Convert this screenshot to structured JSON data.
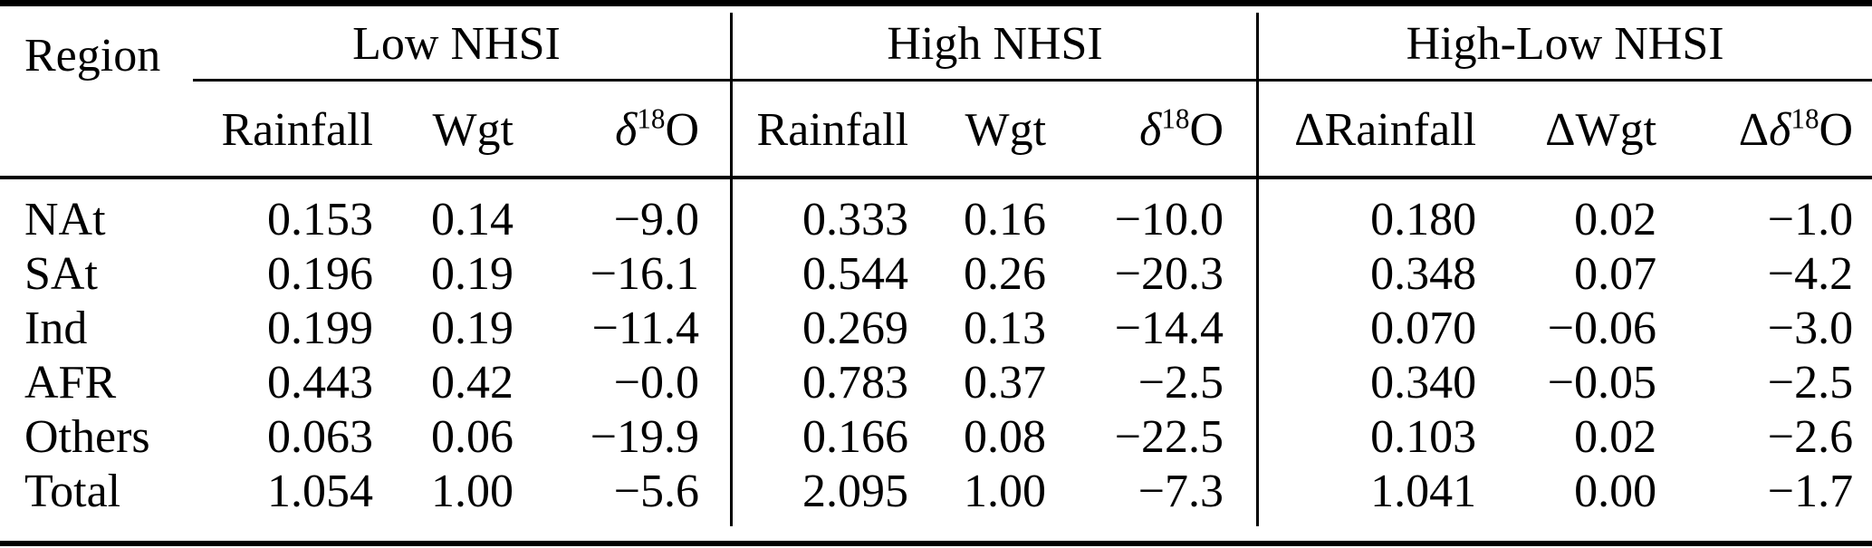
{
  "table": {
    "region_header": "Region",
    "groups": [
      {
        "label": "Low NHSI",
        "columns": [
          [
            {
              "t": "Rainfall"
            }
          ],
          [
            {
              "t": "Wgt"
            }
          ],
          [
            {
              "t": "δ",
              "i": true
            },
            {
              "t": "18",
              "sup": true
            },
            {
              "t": "O"
            }
          ]
        ]
      },
      {
        "label": "High NHSI",
        "columns": [
          [
            {
              "t": "Rainfall"
            }
          ],
          [
            {
              "t": "Wgt"
            }
          ],
          [
            {
              "t": "δ",
              "i": true
            },
            {
              "t": "18",
              "sup": true
            },
            {
              "t": "O"
            }
          ]
        ]
      },
      {
        "label": "High-Low NHSI",
        "columns": [
          [
            {
              "t": "Δ"
            },
            {
              "t": "Rainfall"
            }
          ],
          [
            {
              "t": "Δ"
            },
            {
              "t": "Wgt"
            }
          ],
          [
            {
              "t": "Δ"
            },
            {
              "t": "δ",
              "i": true
            },
            {
              "t": "18",
              "sup": true
            },
            {
              "t": "O"
            }
          ]
        ]
      }
    ],
    "rows": [
      {
        "cells": [
          "NAt",
          "0.153",
          "0.14",
          "−9.0",
          "0.333",
          "0.16",
          "−10.0",
          "0.180",
          "0.02",
          "−1.0"
        ]
      },
      {
        "cells": [
          "SAt",
          "0.196",
          "0.19",
          "−16.1",
          "0.544",
          "0.26",
          "−20.3",
          "0.348",
          "0.07",
          "−4.2"
        ]
      },
      {
        "cells": [
          "Ind",
          "0.199",
          "0.19",
          "−11.4",
          "0.269",
          "0.13",
          "−14.4",
          "0.070",
          "−0.06",
          "−3.0"
        ]
      },
      {
        "cells": [
          "AFR",
          "0.443",
          "0.42",
          "−0.0",
          "0.783",
          "0.37",
          "−2.5",
          "0.340",
          "−0.05",
          "−2.5"
        ]
      },
      {
        "cells": [
          "Others",
          "0.063",
          "0.06",
          "−19.9",
          "0.166",
          "0.08",
          "−22.5",
          "0.103",
          "0.02",
          "−2.6"
        ]
      },
      {
        "cells": [
          "Total",
          "1.054",
          "1.00",
          "−5.6",
          "2.095",
          "1.00",
          "−7.3",
          "1.041",
          "0.00",
          "−1.7"
        ]
      }
    ],
    "colors": {
      "text": "#000000",
      "background": "#ffffff",
      "rule": "#000000"
    }
  }
}
